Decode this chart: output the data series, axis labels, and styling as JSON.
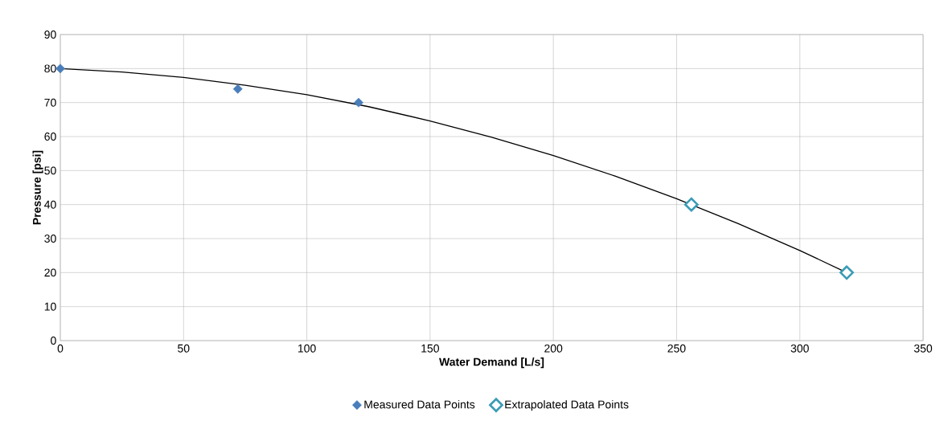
{
  "chart_data": {
    "type": "scatter",
    "xlabel": "Water Demand [L/s]",
    "ylabel": "Pressure [psi]",
    "xlim": [
      0,
      350
    ],
    "xticks": [
      0,
      50,
      100,
      150,
      200,
      250,
      300,
      350
    ],
    "ylim": [
      0,
      90
    ],
    "yticks": [
      0,
      10,
      20,
      30,
      40,
      50,
      60,
      70,
      80,
      90
    ],
    "grid": true,
    "legend": "bottom",
    "marker": "diamond",
    "series": [
      {
        "type": "line",
        "color": "#000000",
        "marker": "none",
        "x": [
          0,
          25,
          50,
          75,
          100,
          125,
          150,
          175,
          200,
          225,
          250,
          275,
          300,
          319
        ],
        "values": [
          80,
          79,
          77.4,
          75.1,
          72.3,
          68.8,
          64.6,
          59.8,
          54.4,
          48.4,
          41.7,
          34.4,
          26.5,
          20
        ]
      },
      {
        "name": "Measured Data Points",
        "color": "#4a7ebb",
        "x": [
          0,
          72,
          121
        ],
        "values": [
          80,
          74,
          70
        ]
      },
      {
        "name": "Extrapolated Data Points",
        "color": "#3b9cb5",
        "x": [
          256,
          319
        ],
        "values": [
          40,
          20
        ]
      }
    ]
  }
}
